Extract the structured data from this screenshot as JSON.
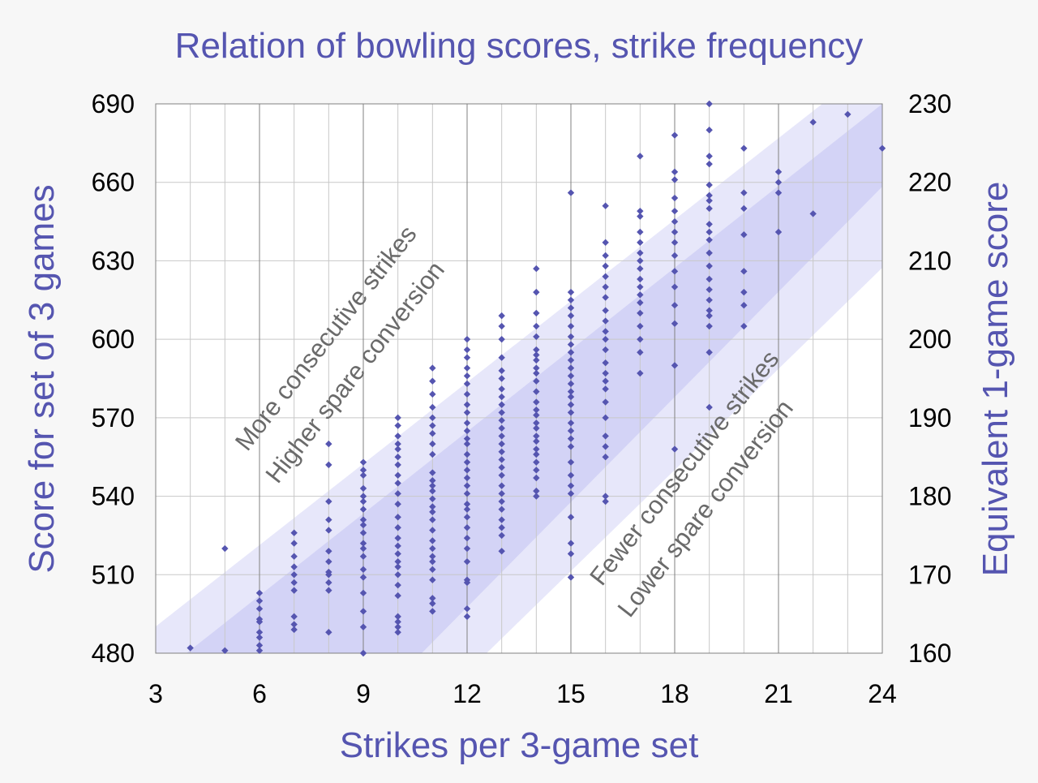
{
  "chart_data": {
    "type": "scatter",
    "title": "Relation of bowling scores, strike frequency",
    "xlabel": "Strikes per 3-game set",
    "ylabel": "Score for set of 3 games",
    "y2label": "Equivalent 1-game score",
    "xlim": [
      3,
      24
    ],
    "ylim": [
      480,
      690
    ],
    "y2lim": [
      160,
      230
    ],
    "xticks": [
      "3",
      "6",
      "9",
      "12",
      "15",
      "18",
      "21",
      "24"
    ],
    "yticks": [
      "480",
      "510",
      "540",
      "570",
      "600",
      "630",
      "660",
      "690"
    ],
    "y2ticks": [
      "160",
      "170",
      "180",
      "190",
      "200",
      "210",
      "220",
      "230"
    ],
    "grid": true,
    "annotations": {
      "upper_line1": "More consecutive strikes",
      "upper_line2": "Higher spare conversion",
      "lower_line1": "Fewer consecutive strikes",
      "lower_line2": "Lower spare conversion"
    },
    "colors": {
      "title": "#5555b0",
      "points": "#5555b0",
      "band": "#b8b8f0",
      "annotation": "#6a6a6a",
      "grid_major": "#808080",
      "grid_minor": "#c8c8c8",
      "background": "#f7f7f7"
    },
    "series": [
      {
        "points": [
          [
            4,
            482
          ],
          [
            5,
            481
          ],
          [
            5,
            520
          ],
          [
            6,
            481
          ],
          [
            6,
            483
          ],
          [
            6,
            486
          ],
          [
            6,
            488
          ],
          [
            6,
            492
          ],
          [
            6,
            493
          ],
          [
            6,
            497
          ],
          [
            6,
            500
          ],
          [
            6,
            503
          ],
          [
            7,
            489
          ],
          [
            7,
            491
          ],
          [
            7,
            494
          ],
          [
            7,
            504
          ],
          [
            7,
            507
          ],
          [
            7,
            510
          ],
          [
            7,
            513
          ],
          [
            7,
            517
          ],
          [
            7,
            522
          ],
          [
            7,
            526
          ],
          [
            8,
            488
          ],
          [
            8,
            504
          ],
          [
            8,
            507
          ],
          [
            8,
            510
          ],
          [
            8,
            511
          ],
          [
            8,
            515
          ],
          [
            8,
            519
          ],
          [
            8,
            527
          ],
          [
            8,
            531
          ],
          [
            8,
            538
          ],
          [
            8,
            552
          ],
          [
            8,
            560
          ],
          [
            9,
            480
          ],
          [
            9,
            490
          ],
          [
            9,
            496
          ],
          [
            9,
            503
          ],
          [
            9,
            509
          ],
          [
            9,
            512
          ],
          [
            9,
            517
          ],
          [
            9,
            520
          ],
          [
            9,
            522
          ],
          [
            9,
            526
          ],
          [
            9,
            529
          ],
          [
            9,
            531
          ],
          [
            9,
            535
          ],
          [
            9,
            538
          ],
          [
            9,
            540
          ],
          [
            9,
            543
          ],
          [
            9,
            548
          ],
          [
            9,
            550
          ],
          [
            9,
            553
          ],
          [
            10,
            488
          ],
          [
            10,
            490
          ],
          [
            10,
            492
          ],
          [
            10,
            494
          ],
          [
            10,
            502
          ],
          [
            10,
            506
          ],
          [
            10,
            510
          ],
          [
            10,
            513
          ],
          [
            10,
            515
          ],
          [
            10,
            518
          ],
          [
            10,
            521
          ],
          [
            10,
            524
          ],
          [
            10,
            528
          ],
          [
            10,
            532
          ],
          [
            10,
            537
          ],
          [
            10,
            541
          ],
          [
            10,
            545
          ],
          [
            10,
            548
          ],
          [
            10,
            552
          ],
          [
            10,
            555
          ],
          [
            10,
            558
          ],
          [
            10,
            560
          ],
          [
            10,
            563
          ],
          [
            10,
            567
          ],
          [
            10,
            570
          ],
          [
            11,
            496
          ],
          [
            11,
            499
          ],
          [
            11,
            501
          ],
          [
            11,
            508
          ],
          [
            11,
            512
          ],
          [
            11,
            515
          ],
          [
            11,
            517
          ],
          [
            11,
            520
          ],
          [
            11,
            523
          ],
          [
            11,
            527
          ],
          [
            11,
            531
          ],
          [
            11,
            534
          ],
          [
            11,
            536
          ],
          [
            11,
            539
          ],
          [
            11,
            542
          ],
          [
            11,
            544
          ],
          [
            11,
            546
          ],
          [
            11,
            549
          ],
          [
            11,
            556
          ],
          [
            11,
            560
          ],
          [
            11,
            564
          ],
          [
            11,
            567
          ],
          [
            11,
            570
          ],
          [
            11,
            574
          ],
          [
            11,
            579
          ],
          [
            11,
            584
          ],
          [
            11,
            589
          ],
          [
            12,
            494
          ],
          [
            12,
            497
          ],
          [
            12,
            507
          ],
          [
            12,
            508
          ],
          [
            12,
            515
          ],
          [
            12,
            520
          ],
          [
            12,
            524
          ],
          [
            12,
            528
          ],
          [
            12,
            532
          ],
          [
            12,
            535
          ],
          [
            12,
            537
          ],
          [
            12,
            541
          ],
          [
            12,
            544
          ],
          [
            12,
            547
          ],
          [
            12,
            550
          ],
          [
            12,
            553
          ],
          [
            12,
            556
          ],
          [
            12,
            560
          ],
          [
            12,
            562
          ],
          [
            12,
            565
          ],
          [
            12,
            568
          ],
          [
            12,
            572
          ],
          [
            12,
            575
          ],
          [
            12,
            579
          ],
          [
            12,
            583
          ],
          [
            12,
            586
          ],
          [
            12,
            589
          ],
          [
            12,
            593
          ],
          [
            12,
            596
          ],
          [
            12,
            600
          ],
          [
            13,
            519
          ],
          [
            13,
            525
          ],
          [
            13,
            528
          ],
          [
            13,
            531
          ],
          [
            13,
            535
          ],
          [
            13,
            538
          ],
          [
            13,
            541
          ],
          [
            13,
            544
          ],
          [
            13,
            548
          ],
          [
            13,
            551
          ],
          [
            13,
            554
          ],
          [
            13,
            557
          ],
          [
            13,
            560
          ],
          [
            13,
            563
          ],
          [
            13,
            566
          ],
          [
            13,
            569
          ],
          [
            13,
            572
          ],
          [
            13,
            575
          ],
          [
            13,
            578
          ],
          [
            13,
            581
          ],
          [
            13,
            585
          ],
          [
            13,
            588
          ],
          [
            13,
            593
          ],
          [
            13,
            600
          ],
          [
            13,
            605
          ],
          [
            13,
            609
          ],
          [
            14,
            540
          ],
          [
            14,
            542
          ],
          [
            14,
            547
          ],
          [
            14,
            550
          ],
          [
            14,
            553
          ],
          [
            14,
            556
          ],
          [
            14,
            558
          ],
          [
            14,
            561
          ],
          [
            14,
            563
          ],
          [
            14,
            566
          ],
          [
            14,
            568
          ],
          [
            14,
            571
          ],
          [
            14,
            573
          ],
          [
            14,
            576
          ],
          [
            14,
            580
          ],
          [
            14,
            584
          ],
          [
            14,
            587
          ],
          [
            14,
            589
          ],
          [
            14,
            592
          ],
          [
            14,
            594
          ],
          [
            14,
            596
          ],
          [
            14,
            601
          ],
          [
            14,
            605
          ],
          [
            14,
            610
          ],
          [
            14,
            618
          ],
          [
            14,
            627
          ],
          [
            15,
            509
          ],
          [
            15,
            518
          ],
          [
            15,
            522
          ],
          [
            15,
            532
          ],
          [
            15,
            541
          ],
          [
            15,
            544
          ],
          [
            15,
            548
          ],
          [
            15,
            553
          ],
          [
            15,
            559
          ],
          [
            15,
            562
          ],
          [
            15,
            565
          ],
          [
            15,
            568
          ],
          [
            15,
            572
          ],
          [
            15,
            575
          ],
          [
            15,
            578
          ],
          [
            15,
            580
          ],
          [
            15,
            583
          ],
          [
            15,
            586
          ],
          [
            15,
            589
          ],
          [
            15,
            592
          ],
          [
            15,
            595
          ],
          [
            15,
            598
          ],
          [
            15,
            601
          ],
          [
            15,
            605
          ],
          [
            15,
            609
          ],
          [
            15,
            612
          ],
          [
            15,
            615
          ],
          [
            15,
            618
          ],
          [
            15,
            656
          ],
          [
            16,
            538
          ],
          [
            16,
            540
          ],
          [
            16,
            555
          ],
          [
            16,
            559
          ],
          [
            16,
            563
          ],
          [
            16,
            570
          ],
          [
            16,
            576
          ],
          [
            16,
            581
          ],
          [
            16,
            584
          ],
          [
            16,
            587
          ],
          [
            16,
            591
          ],
          [
            16,
            596
          ],
          [
            16,
            600
          ],
          [
            16,
            603
          ],
          [
            16,
            607
          ],
          [
            16,
            611
          ],
          [
            16,
            616
          ],
          [
            16,
            620
          ],
          [
            16,
            624
          ],
          [
            16,
            628
          ],
          [
            16,
            632
          ],
          [
            16,
            637
          ],
          [
            16,
            651
          ],
          [
            17,
            587
          ],
          [
            17,
            595
          ],
          [
            17,
            600
          ],
          [
            17,
            605
          ],
          [
            17,
            610
          ],
          [
            17,
            614
          ],
          [
            17,
            617
          ],
          [
            17,
            620
          ],
          [
            17,
            623
          ],
          [
            17,
            627
          ],
          [
            17,
            630
          ],
          [
            17,
            633
          ],
          [
            17,
            637
          ],
          [
            17,
            641
          ],
          [
            17,
            647
          ],
          [
            17,
            649
          ],
          [
            17,
            670
          ],
          [
            18,
            558
          ],
          [
            18,
            590
          ],
          [
            18,
            606
          ],
          [
            18,
            613
          ],
          [
            18,
            620
          ],
          [
            18,
            626
          ],
          [
            18,
            632
          ],
          [
            18,
            637
          ],
          [
            18,
            641
          ],
          [
            18,
            645
          ],
          [
            18,
            649
          ],
          [
            18,
            654
          ],
          [
            18,
            661
          ],
          [
            18,
            664
          ],
          [
            18,
            678
          ],
          [
            19,
            574
          ],
          [
            19,
            595
          ],
          [
            19,
            605
          ],
          [
            19,
            609
          ],
          [
            19,
            611
          ],
          [
            19,
            615
          ],
          [
            19,
            619
          ],
          [
            19,
            623
          ],
          [
            19,
            628
          ],
          [
            19,
            633
          ],
          [
            19,
            638
          ],
          [
            19,
            641
          ],
          [
            19,
            644
          ],
          [
            19,
            650
          ],
          [
            19,
            653
          ],
          [
            19,
            655
          ],
          [
            19,
            659
          ],
          [
            19,
            667
          ],
          [
            19,
            670
          ],
          [
            19,
            680
          ],
          [
            19,
            690
          ],
          [
            20,
            605
          ],
          [
            20,
            613
          ],
          [
            20,
            618
          ],
          [
            20,
            626
          ],
          [
            20,
            640
          ],
          [
            20,
            650
          ],
          [
            20,
            656
          ],
          [
            20,
            673
          ],
          [
            21,
            641
          ],
          [
            21,
            656
          ],
          [
            21,
            660
          ],
          [
            21,
            664
          ],
          [
            22,
            648
          ],
          [
            22,
            683
          ],
          [
            23,
            686
          ],
          [
            24,
            673
          ]
        ]
      }
    ]
  }
}
